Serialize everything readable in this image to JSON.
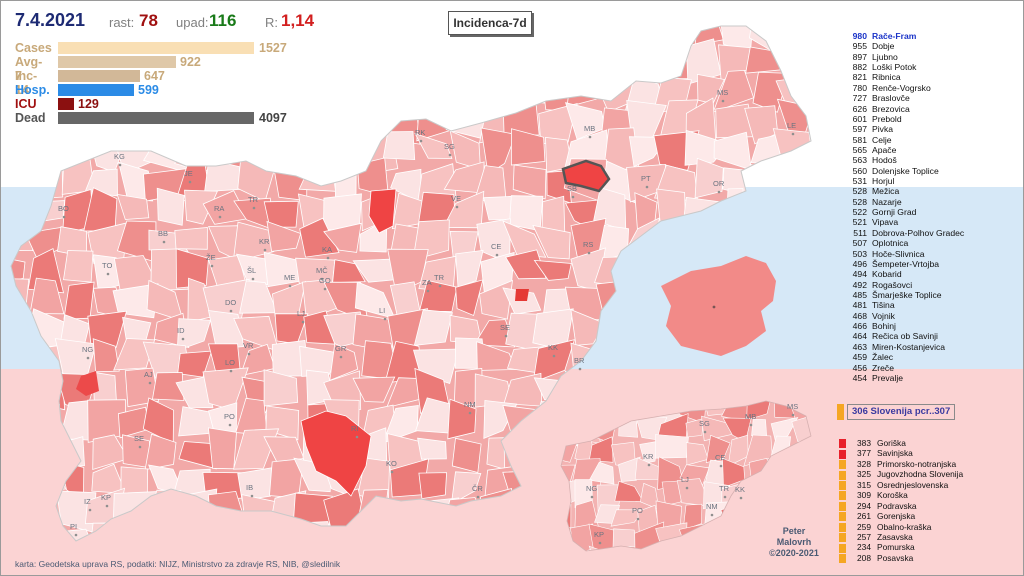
{
  "header": {
    "date": "7.4.2021",
    "rast_label": "rast:",
    "rast_value": "78",
    "upad_label": "upad:",
    "upad_value": "116",
    "r_label": "R:",
    "r_value": "1,14",
    "map_title": "Incidenca-7d"
  },
  "stats": [
    {
      "label": "Cases",
      "value": "1527",
      "color": "#f9dfb4",
      "label_color": "#c8a97a",
      "fraction": 1.0
    },
    {
      "label": "Avg-7",
      "value": "922",
      "color": "#dfc8a8",
      "label_color": "#c8a97a",
      "fraction": 0.6
    },
    {
      "label": "Inc-14",
      "value": "647",
      "color": "#d2b898",
      "label_color": "#c8a97a",
      "fraction": 0.42
    },
    {
      "label": "Hosp.",
      "value": "599",
      "color": "#2b8be6",
      "label_color": "#2b8be6",
      "fraction": 0.39
    },
    {
      "label": "ICU",
      "value": "129",
      "color": "#8b1010",
      "label_color": "#a01010",
      "fraction": 0.08
    },
    {
      "label": "Dead",
      "value": "4097",
      "color": "#676767",
      "label_color": "#555555",
      "fraction": 1.0
    }
  ],
  "municipality_ranking": [
    {
      "value": "980",
      "name": "Rače-Fram"
    },
    {
      "value": "955",
      "name": "Dobje"
    },
    {
      "value": "897",
      "name": "Ljubno"
    },
    {
      "value": "882",
      "name": "Loški Potok"
    },
    {
      "value": "821",
      "name": "Ribnica"
    },
    {
      "value": "780",
      "name": "Renče-Vogrsko"
    },
    {
      "value": "727",
      "name": "Braslovče"
    },
    {
      "value": "626",
      "name": "Brezovica"
    },
    {
      "value": "601",
      "name": "Prebold"
    },
    {
      "value": "597",
      "name": "Pivka"
    },
    {
      "value": "581",
      "name": "Celje"
    },
    {
      "value": "565",
      "name": "Apače"
    },
    {
      "value": "563",
      "name": "Hodoš"
    },
    {
      "value": "560",
      "name": "Dolenjske Toplice"
    },
    {
      "value": "531",
      "name": "Horjul"
    },
    {
      "value": "528",
      "name": "Mežica"
    },
    {
      "value": "528",
      "name": "Nazarje"
    },
    {
      "value": "522",
      "name": "Gornji Grad"
    },
    {
      "value": "521",
      "name": "Vipava"
    },
    {
      "value": "511",
      "name": "Dobrova-Polhov Gradec"
    },
    {
      "value": "507",
      "name": "Oplotnica"
    },
    {
      "value": "503",
      "name": "Hoče-Slivnica"
    },
    {
      "value": "496",
      "name": "Šempeter-Vrtojba"
    },
    {
      "value": "494",
      "name": "Kobarid"
    },
    {
      "value": "492",
      "name": "Rogašovci"
    },
    {
      "value": "485",
      "name": "Šmarješke Toplice"
    },
    {
      "value": "481",
      "name": "Tišina"
    },
    {
      "value": "468",
      "name": "Vojnik"
    },
    {
      "value": "466",
      "name": "Bohinj"
    },
    {
      "value": "464",
      "name": "Rečica ob Savinji"
    },
    {
      "value": "463",
      "name": "Miren-Kostanjevica"
    },
    {
      "value": "459",
      "name": "Žalec"
    },
    {
      "value": "456",
      "name": "Zreče"
    },
    {
      "value": "454",
      "name": "Prevalje"
    }
  ],
  "national": {
    "text": "306   Slovenija  pcr..307",
    "color": "#f5a623"
  },
  "region_ranking": [
    {
      "value": "383",
      "name": "Goriška",
      "color": "#e8202a"
    },
    {
      "value": "377",
      "name": "Savinjska",
      "color": "#e8202a"
    },
    {
      "value": "328",
      "name": "Primorsko-notranjska",
      "color": "#f5a623"
    },
    {
      "value": "325",
      "name": "Jugovzhodna Slovenija",
      "color": "#f5a623"
    },
    {
      "value": "315",
      "name": "Osrednjeslovenska",
      "color": "#f5a623"
    },
    {
      "value": "309",
      "name": "Koroška",
      "color": "#f5a623"
    },
    {
      "value": "294",
      "name": "Podravska",
      "color": "#f5a623"
    },
    {
      "value": "261",
      "name": "Gorenjska",
      "color": "#f5a623"
    },
    {
      "value": "259",
      "name": "Obalno-kraška",
      "color": "#f5a623"
    },
    {
      "value": "257",
      "name": "Zasavska",
      "color": "#f5a623"
    },
    {
      "value": "234",
      "name": "Pomurska",
      "color": "#f5a623"
    },
    {
      "value": "208",
      "name": "Posavska",
      "color": "#f5a623"
    }
  ],
  "credit": {
    "line1": "Peter",
    "line2": "Malovrh",
    "line3": "©2020-2021"
  },
  "footer": "karta: Geodetska uprava RS,  podatki: NIJZ, Ministrstvo za zdravje RS, NIB, @sledilnik",
  "map_labels": {
    "main": [
      "KG",
      "JE",
      "BO",
      "RA",
      "TR",
      "BB",
      "TO",
      "ŽE",
      "KR",
      "ŠL",
      "ME",
      "KA",
      "MČ",
      "GO",
      "DO",
      "LJ",
      "ID",
      "VR",
      "LO",
      "AJ",
      "NG",
      "PO",
      "SE",
      "IB",
      "KP",
      "IZ",
      "PI",
      "LI",
      "GR",
      "VE",
      "SG",
      "RK",
      "MB",
      "MS",
      "LE",
      "PT",
      "OR",
      "SB",
      "CE",
      "ZA",
      "TR",
      "RS",
      "SE",
      "KK",
      "BR",
      "NM",
      "RI",
      "KO",
      "ČR"
    ],
    "inset_regions": [
      "SG",
      "MB",
      "MS",
      "KR",
      "CE",
      "LJ",
      "TR",
      "KK",
      "NG",
      "PO",
      "NM",
      "KP"
    ]
  },
  "colors": {
    "band_top": "#ffffff",
    "band_mid": "#d6e8f7",
    "band_bot": "#fbd3d3",
    "muni_high": "#ef5350",
    "muni_mid": "#f5a5a3",
    "muni_low": "#fbe3e3",
    "highlight_outline": "#555555"
  }
}
